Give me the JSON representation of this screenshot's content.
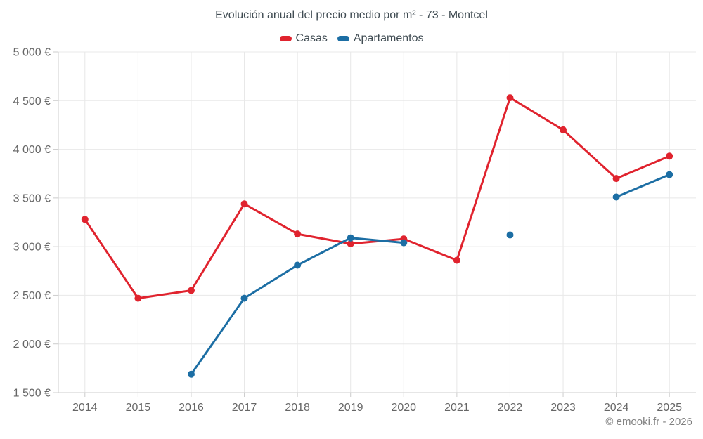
{
  "title": "Evolución anual del precio medio por m² - 73 - Montcel",
  "footer": "© emooki.fr - 2026",
  "legend": {
    "items": [
      {
        "label": "Casas",
        "color": "#e0232e"
      },
      {
        "label": "Apartamentos",
        "color": "#1c6ea4"
      }
    ]
  },
  "chart_data": {
    "type": "line",
    "title": "Evolución anual del precio medio por m² - 73 - Montcel",
    "x": [
      2014,
      2015,
      2016,
      2017,
      2018,
      2019,
      2020,
      2021,
      2022,
      2023,
      2024,
      2025
    ],
    "series": [
      {
        "name": "Casas",
        "color": "#e0232e",
        "values": [
          3280,
          2470,
          2550,
          3440,
          3130,
          3030,
          3080,
          2860,
          4530,
          4200,
          3700,
          3930
        ]
      },
      {
        "name": "Apartamentos",
        "color": "#1c6ea4",
        "values": [
          null,
          null,
          1690,
          2470,
          2810,
          3090,
          3040,
          null,
          3120,
          null,
          3510,
          3740
        ]
      }
    ],
    "ylim": [
      1500,
      5000
    ],
    "ytick_step": 500,
    "ytick_suffix": "€",
    "xlabel": "",
    "ylabel": "",
    "grid": true,
    "legend_position": "top",
    "grid_color": "#e8e8e8",
    "axis_color": "#cccccc",
    "tick_label_color": "#666666"
  }
}
